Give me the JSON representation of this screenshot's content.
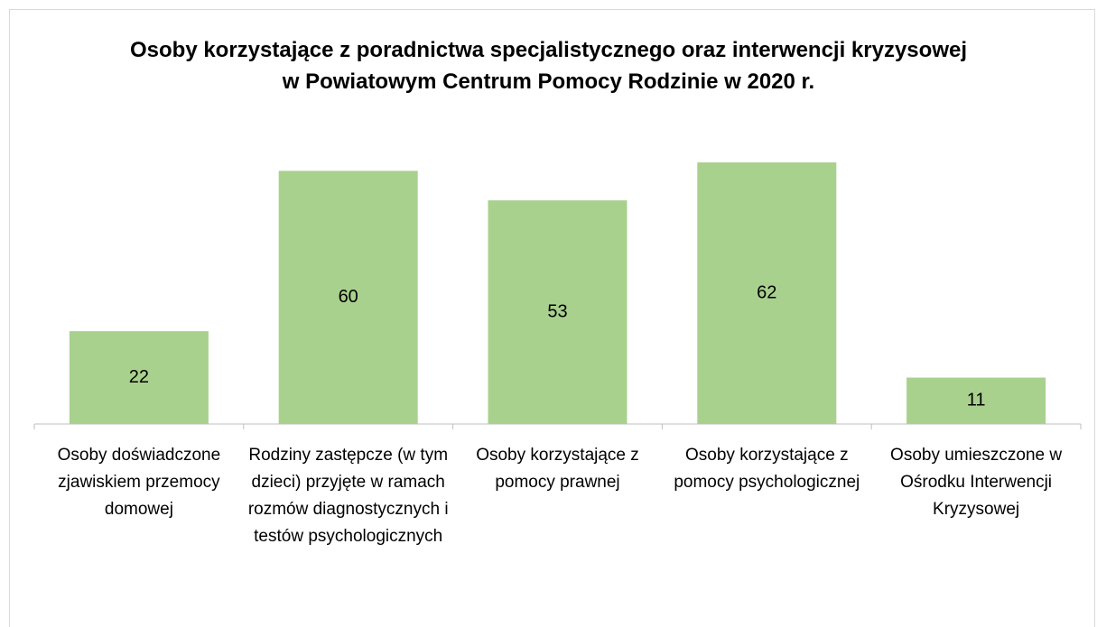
{
  "chart_data": {
    "type": "bar",
    "title": "Osoby korzystające z poradnictwa specjalistycznego oraz interwencji kryzysowej w Powiatowym Centrum Pomocy Rodzinie w 2020 r.",
    "categories": [
      "Osoby doświadczone zjawiskiem przemocy domowej",
      "Rodziny zastępcze (w tym dzieci) przyjęte w ramach rozmów diagnostycznych i testów psychologicznych",
      "Osoby korzystające z pomocy prawnej",
      "Osoby korzystające z pomocy psychologicznej",
      "Osoby umieszczone w Ośrodku Interwencji Kryzysowej"
    ],
    "values": [
      22,
      60,
      53,
      62,
      11
    ],
    "color": "#a9d18e"
  }
}
